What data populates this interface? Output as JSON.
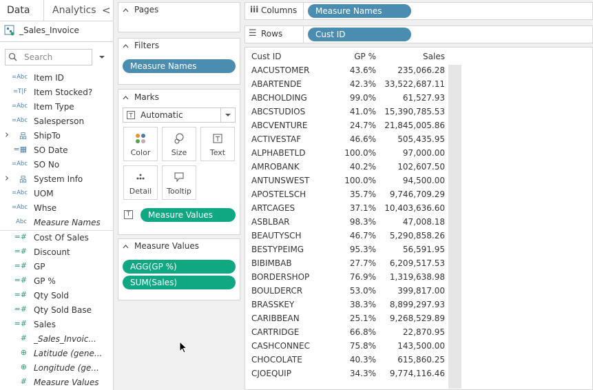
{
  "data_pane": {
    "tabs": [
      "Data",
      "Analytics"
    ],
    "collapse": "<",
    "source": "_Sales_Invoice",
    "search_placeholder": "Search",
    "dimensions": [
      {
        "icon": "=Abc",
        "name": "Item ID"
      },
      {
        "icon": "=T|F",
        "name": "Item Stocked?"
      },
      {
        "icon": "=Abc",
        "name": "Item Type"
      },
      {
        "icon": "=Abc",
        "name": "Salesperson"
      },
      {
        "icon": "品",
        "name": "ShipTo",
        "expandable": true
      },
      {
        "icon": "=▦",
        "name": "SO Date"
      },
      {
        "icon": "=Abc",
        "name": "SO No"
      },
      {
        "icon": "品",
        "name": "System Info",
        "expandable": true
      },
      {
        "icon": "=Abc",
        "name": "UOM"
      },
      {
        "icon": "=Abc",
        "name": "Whse"
      },
      {
        "icon": "Abc",
        "name": "Measure Names",
        "italic": true
      }
    ],
    "measures": [
      {
        "icon": "=#",
        "name": "Cost Of Sales"
      },
      {
        "icon": "=#",
        "name": "Discount"
      },
      {
        "icon": "=#",
        "name": "GP"
      },
      {
        "icon": "=#",
        "name": "GP %"
      },
      {
        "icon": "=#",
        "name": "Qty Sold"
      },
      {
        "icon": "=#",
        "name": "Qty Sold Base"
      },
      {
        "icon": "=#",
        "name": "Sales"
      },
      {
        "icon": "#",
        "name": "_Sales_Invoic...",
        "italic": true
      },
      {
        "icon": "⊕",
        "name": "Latitude (gene...",
        "italic": true
      },
      {
        "icon": "⊕",
        "name": "Longitude (ge...",
        "italic": true
      },
      {
        "icon": "#",
        "name": "Measure Values",
        "italic": true
      }
    ]
  },
  "pages": {
    "title": "Pages"
  },
  "filters": {
    "title": "Filters",
    "pills": [
      "Measure Names"
    ]
  },
  "marks": {
    "title": "Marks",
    "mark_type": "Automatic",
    "buttons": [
      "Color",
      "Size",
      "Text",
      "Detail",
      "Tooltip"
    ],
    "text_icon": "T",
    "pill": "Measure Values"
  },
  "measure_values": {
    "title": "Measure Values",
    "pills": [
      "AGG(GP %)",
      "SUM(Sales)"
    ]
  },
  "columns": {
    "icon": "iii",
    "label": "Columns",
    "pill": "Measure Names"
  },
  "rows_shelf": {
    "icon": "☰",
    "label": "Rows",
    "pill": "Cust ID"
  },
  "table": {
    "headers": [
      "Cust ID",
      "GP %",
      "Sales"
    ],
    "rows": [
      [
        "AACUSTOMER",
        "43.6%",
        "235,066.28"
      ],
      [
        "ABARTENDE",
        "42.3%",
        "33,522,687.11"
      ],
      [
        "ABCHOLDING",
        "99.0%",
        "61,527.93"
      ],
      [
        "ABCSTUDIOS",
        "41.0%",
        "15,390,785.53"
      ],
      [
        "ABCVENTURE",
        "24.7%",
        "21,845,005.86"
      ],
      [
        "ACTIVESTAF",
        "46.6%",
        "505,435.95"
      ],
      [
        "ALPHABETLD",
        "100.0%",
        "97,000.00"
      ],
      [
        "AMROBANK",
        "40.2%",
        "102,607.50"
      ],
      [
        "ANTUNSWEST",
        "100.0%",
        "94,500.00"
      ],
      [
        "APOSTELSCH",
        "35.7%",
        "9,746,709.29"
      ],
      [
        "ARTCAGES",
        "37.1%",
        "10,403,636.60"
      ],
      [
        "ASBLBAR",
        "98.3%",
        "47,008.18"
      ],
      [
        "BEAUTYSCH",
        "46.7%",
        "5,290,858.26"
      ],
      [
        "BESTYPEIMG",
        "95.3%",
        "56,591.95"
      ],
      [
        "BIBIMBAB",
        "27.7%",
        "6,209,517.53"
      ],
      [
        "BORDERSHOP",
        "76.9%",
        "1,319,638.98"
      ],
      [
        "BOULDERCR",
        "53.0%",
        "399,817.00"
      ],
      [
        "BRASSKEY",
        "38.3%",
        "8,899,297.93"
      ],
      [
        "CARIBBEAN",
        "25.1%",
        "9,268,529.89"
      ],
      [
        "CARTRIDGE",
        "66.8%",
        "22,870.95"
      ],
      [
        "CASHCONNEC",
        "75.8%",
        "143,500.00"
      ],
      [
        "CHOCOLATE",
        "40.3%",
        "615,860.25"
      ],
      [
        "CJOEQUIP",
        "34.3%",
        "9,774,116.46"
      ]
    ]
  }
}
